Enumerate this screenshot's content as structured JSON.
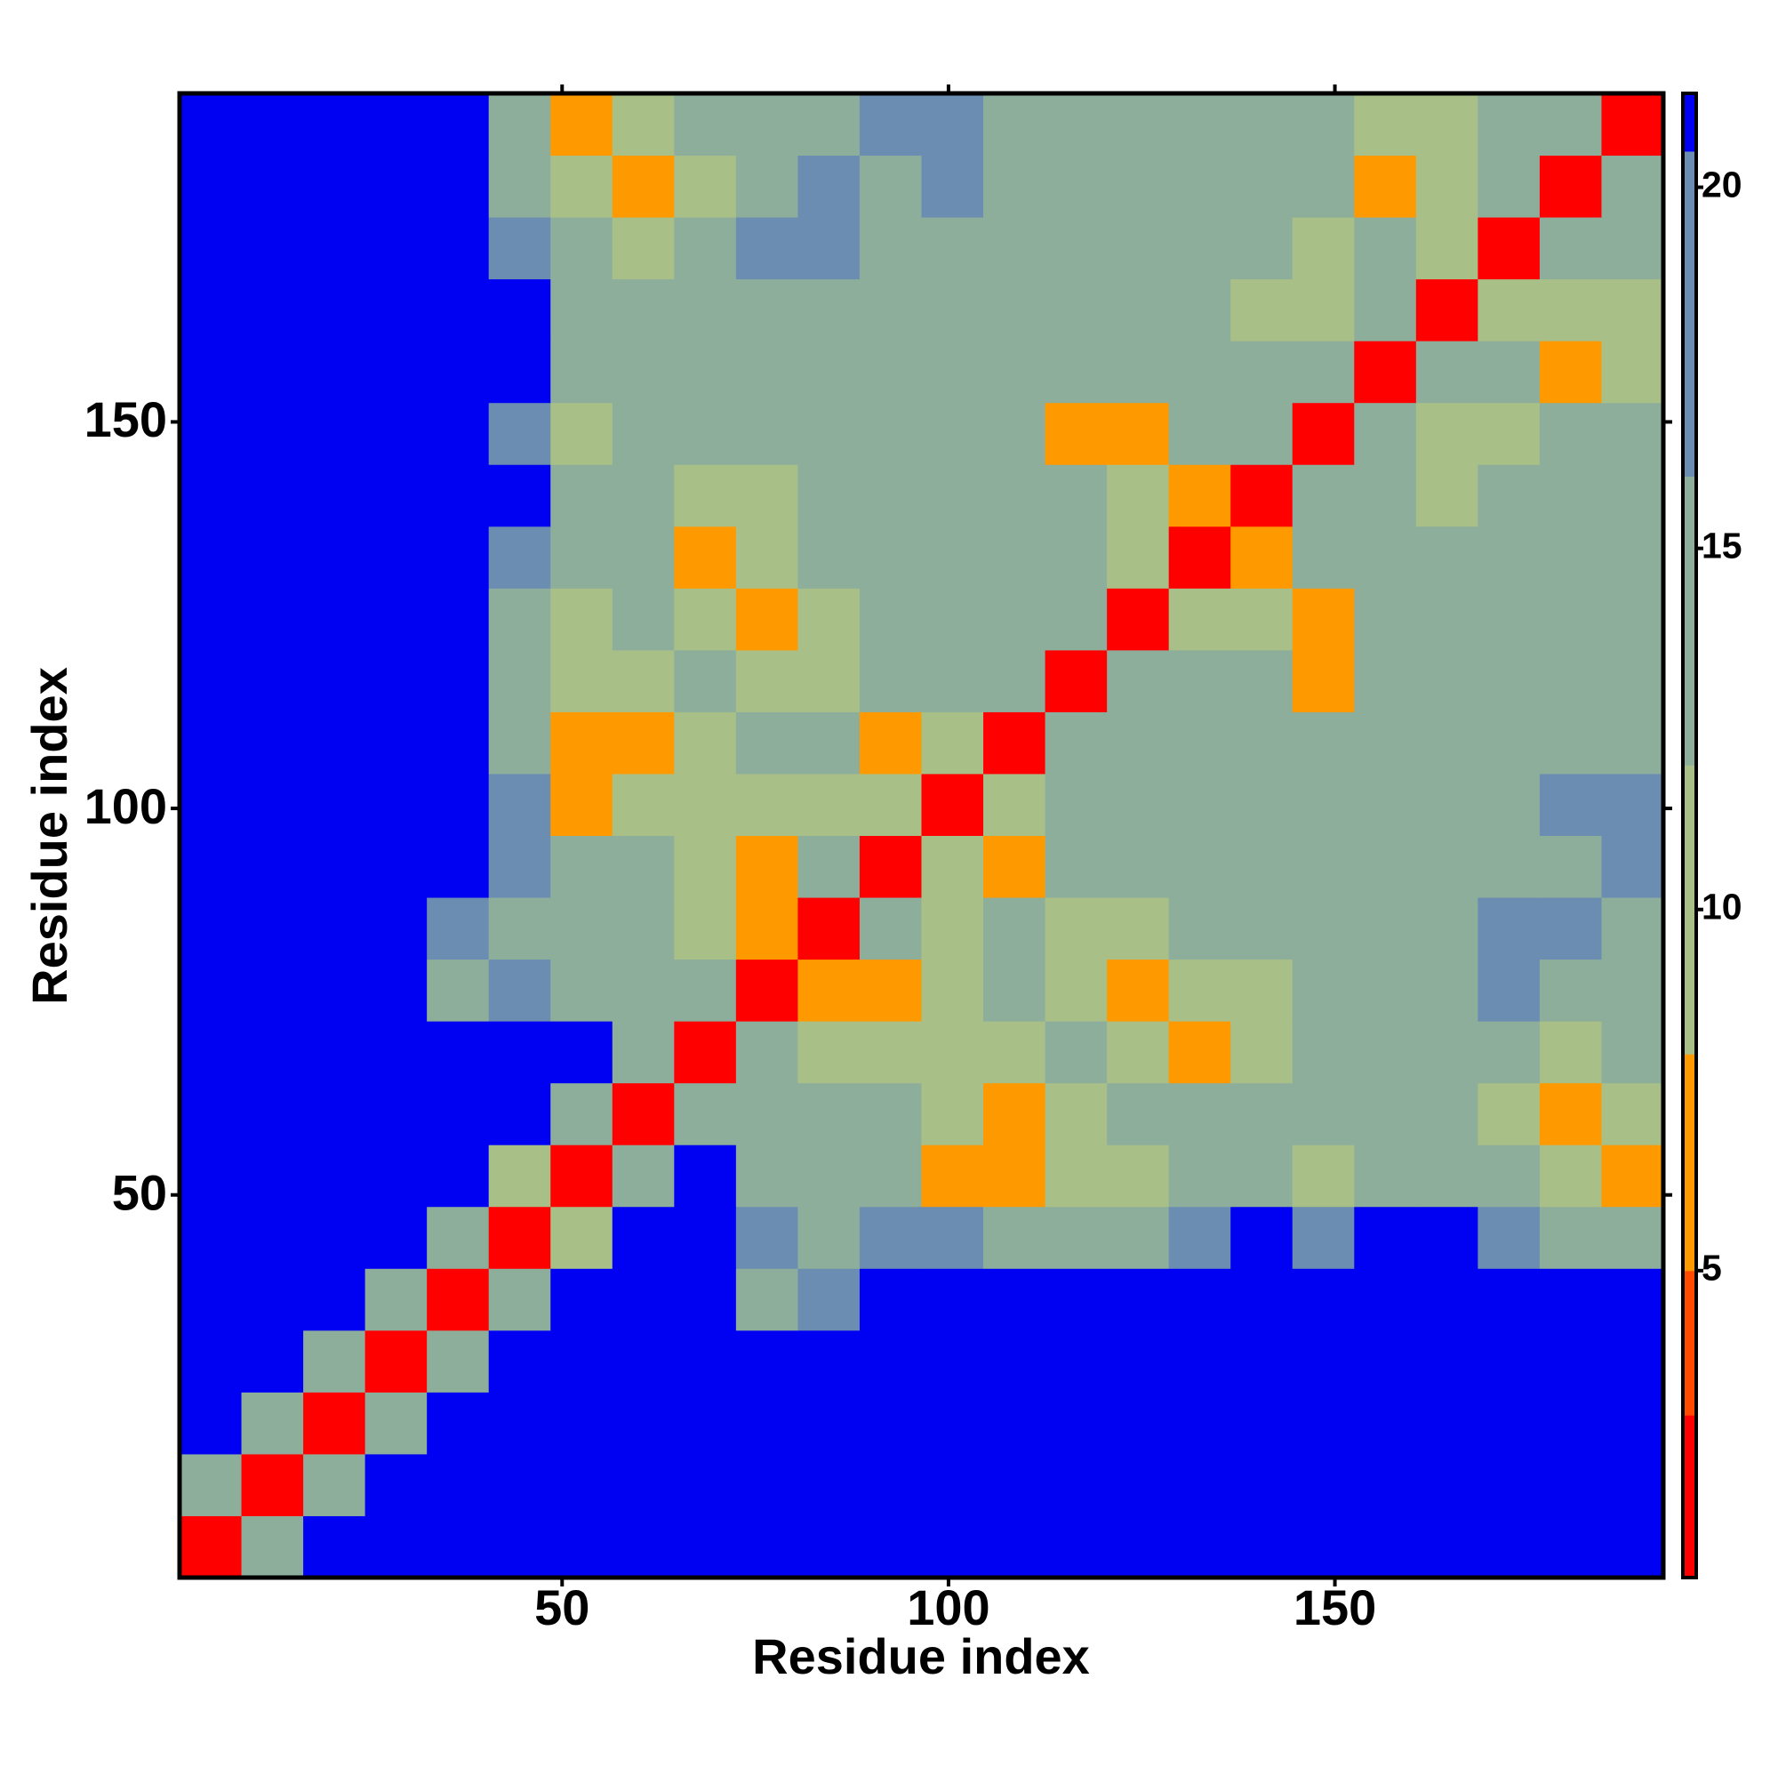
{
  "chart_data": {
    "type": "heatmap",
    "x_label": "Residue index",
    "y_label": "Residue index",
    "xlim": [
      0.5,
      192.5
    ],
    "ylim": [
      0.5,
      192.5
    ],
    "xticks": [
      50,
      100,
      150
    ],
    "yticks": [
      50,
      100,
      150
    ],
    "xbins": [
      0.5,
      8.5,
      16.5,
      24.5,
      32.5,
      40.5,
      48.5,
      56.5,
      64.5,
      72.5,
      80.5,
      88.5,
      96.5,
      104.5,
      112.5,
      120.5,
      128.5,
      136.5,
      144.5,
      152.5,
      160.5,
      168.5,
      176.5,
      184.5,
      192.5
    ],
    "ybins": [
      0.5,
      8.5,
      16.5,
      24.5,
      32.5,
      40.5,
      48.5,
      56.5,
      64.5,
      72.5,
      80.5,
      88.5,
      96.5,
      104.5,
      112.5,
      120.5,
      128.5,
      136.5,
      144.5,
      152.5,
      160.5,
      168.5,
      176.5,
      184.5,
      192.5
    ],
    "clim": [
      0.75,
      21.3
    ],
    "cticks": [
      5,
      10,
      15,
      20
    ],
    "colorscale": [
      {
        "value": 3,
        "color": "#ff0000"
      },
      {
        "value": 5,
        "color": "#ff4a00"
      },
      {
        "value": 8,
        "color": "#ff9900"
      },
      {
        "value": 12,
        "color": "#a9bf88"
      },
      {
        "value": 16,
        "color": "#8eae9c"
      },
      {
        "value": 20.5,
        "color": "#6b8db2"
      },
      {
        "value": 21.3,
        "color": "#0000f2"
      }
    ],
    "z": [
      [
        3,
        13,
        21.3,
        21.3,
        21.3,
        21.3,
        21.3,
        21.3,
        21.3,
        21.3,
        21.3,
        21.3,
        21.3,
        21.3,
        21.3,
        21.3,
        21.3,
        21.3,
        21.3,
        21.3,
        21.3,
        21.3,
        21.3,
        21.3
      ],
      [
        13,
        3,
        13,
        21.3,
        21.3,
        21.3,
        21.3,
        21.3,
        21.3,
        21.3,
        21.3,
        21.3,
        21.3,
        21.3,
        21.3,
        21.3,
        21.3,
        21.3,
        21.3,
        21.3,
        21.3,
        21.3,
        21.3,
        21.3
      ],
      [
        21.3,
        13,
        3,
        13,
        21.3,
        21.3,
        21.3,
        21.3,
        21.3,
        21.3,
        21.3,
        21.3,
        21.3,
        21.3,
        21.3,
        21.3,
        21.3,
        21.3,
        21.3,
        21.3,
        21.3,
        21.3,
        21.3,
        21.3
      ],
      [
        21.3,
        21.3,
        13,
        3,
        13,
        21.3,
        21.3,
        21.3,
        21.3,
        21.3,
        21.3,
        21.3,
        21.3,
        21.3,
        21.3,
        21.3,
        21.3,
        21.3,
        21.3,
        21.3,
        21.3,
        21.3,
        21.3,
        21.3
      ],
      [
        21.3,
        21.3,
        21.3,
        13,
        3,
        13,
        21.3,
        21.3,
        21.3,
        16,
        17,
        21.3,
        21.3,
        21.3,
        21.3,
        21.3,
        21.3,
        21.3,
        21.3,
        21.3,
        21.3,
        21.3,
        21.3,
        21.3
      ],
      [
        21.3,
        21.3,
        21.3,
        21.3,
        13,
        3,
        11,
        21.3,
        21.3,
        17,
        16,
        17,
        18,
        15,
        14,
        16,
        17,
        21.3,
        17,
        21.3,
        21.3,
        17,
        15,
        14
      ],
      [
        21.3,
        21.3,
        21.3,
        21.3,
        21.3,
        11,
        3,
        13,
        21.3,
        13,
        15,
        14,
        8,
        8,
        12,
        12,
        14,
        14,
        12,
        14,
        16,
        14,
        12,
        7
      ],
      [
        21.3,
        21.3,
        21.3,
        21.3,
        21.3,
        21.3,
        13,
        3,
        13,
        15,
        13,
        14,
        9,
        7,
        9,
        14,
        13,
        15,
        14,
        13,
        14,
        12,
        7,
        10
      ],
      [
        21.3,
        21.3,
        21.3,
        21.3,
        21.3,
        21.3,
        21.3,
        13,
        3,
        13,
        12,
        9,
        11,
        12,
        13,
        12,
        7,
        12,
        14,
        15,
        14,
        15,
        12,
        16
      ],
      [
        21.3,
        21.3,
        21.3,
        21.3,
        16,
        17,
        13,
        15,
        13,
        3,
        8,
        8,
        12,
        14,
        12,
        8,
        11,
        12,
        14,
        15,
        15,
        17,
        16,
        16
      ],
      [
        21.3,
        21.3,
        21.3,
        21.3,
        17,
        16,
        15,
        13,
        12,
        8,
        3,
        13,
        12,
        13,
        12,
        9,
        14,
        15,
        16,
        16,
        16,
        17,
        17,
        16
      ],
      [
        21.3,
        21.3,
        21.3,
        21.3,
        21.3,
        17,
        14,
        14,
        9,
        8,
        13,
        3,
        9,
        8,
        15,
        13,
        14,
        14,
        15,
        16,
        15,
        16,
        16,
        17
      ],
      [
        21.3,
        21.3,
        21.3,
        21.3,
        21.3,
        18,
        8,
        9,
        11,
        12,
        12,
        9,
        3,
        9,
        13,
        14,
        15,
        14,
        14,
        15,
        16,
        15,
        17,
        17
      ],
      [
        21.3,
        21.3,
        21.3,
        21.3,
        21.3,
        15,
        8,
        7,
        12,
        14,
        13,
        8,
        9,
        3,
        13,
        13,
        15,
        14,
        13,
        14,
        15,
        14,
        15,
        13
      ],
      [
        21.3,
        21.3,
        21.3,
        21.3,
        21.3,
        14,
        12,
        9,
        13,
        12,
        12,
        15,
        13,
        13,
        3,
        13,
        13,
        14,
        8,
        16,
        14,
        14,
        15,
        13
      ],
      [
        21.3,
        21.3,
        21.3,
        21.3,
        21.3,
        16,
        12,
        14,
        12,
        8,
        9,
        13,
        14,
        13,
        13,
        3,
        10,
        9,
        8,
        14,
        14,
        15,
        14,
        16
      ],
      [
        21.3,
        21.3,
        21.3,
        21.3,
        21.3,
        17,
        14,
        13,
        7,
        11,
        14,
        14,
        15,
        15,
        13,
        10,
        3,
        7,
        15,
        15,
        15,
        14,
        15,
        16
      ],
      [
        21.3,
        21.3,
        21.3,
        21.3,
        21.3,
        21.3,
        14,
        15,
        12,
        12,
        15,
        14,
        14,
        14,
        14,
        9,
        7,
        3,
        13,
        13,
        11,
        15,
        14,
        14
      ],
      [
        21.3,
        21.3,
        21.3,
        21.3,
        21.3,
        17,
        12,
        14,
        14,
        14,
        16,
        15,
        14,
        13,
        8,
        8,
        15,
        13,
        3,
        13,
        12,
        11,
        14,
        13
      ],
      [
        21.3,
        21.3,
        21.3,
        21.3,
        21.3,
        21.3,
        14,
        13,
        15,
        15,
        16,
        16,
        15,
        14,
        16,
        14,
        15,
        13,
        13,
        3,
        13,
        13,
        7,
        12
      ],
      [
        21.3,
        21.3,
        21.3,
        21.3,
        21.3,
        21.3,
        16,
        14,
        14,
        15,
        16,
        15,
        16,
        15,
        14,
        14,
        15,
        11,
        12,
        13,
        3,
        10,
        12,
        10
      ],
      [
        21.3,
        21.3,
        21.3,
        21.3,
        21.3,
        17,
        14,
        12,
        15,
        17,
        17,
        16,
        15,
        14,
        14,
        15,
        14,
        15,
        11,
        13,
        10,
        3,
        13,
        14
      ],
      [
        21.3,
        21.3,
        21.3,
        21.3,
        21.3,
        15,
        12,
        7,
        12,
        16,
        17,
        16,
        17,
        15,
        15,
        14,
        15,
        14,
        14,
        7,
        12,
        13,
        3,
        13
      ],
      [
        21.3,
        21.3,
        21.3,
        21.3,
        21.3,
        14,
        7,
        10,
        16,
        16,
        16,
        17,
        17,
        13,
        13,
        16,
        16,
        14,
        13,
        12,
        10,
        14,
        13,
        3
      ]
    ]
  }
}
